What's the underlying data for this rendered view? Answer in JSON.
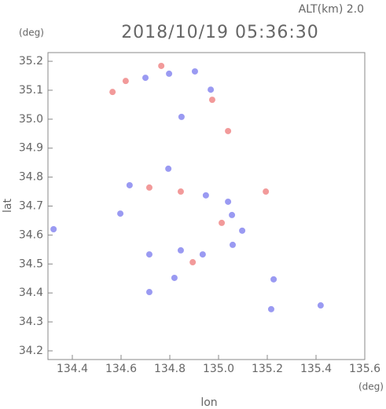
{
  "chart_data": {
    "type": "scatter",
    "title": "2018/10/19 05:36:30",
    "subtitle": "ALT(km) 2.0",
    "y_unit": "(deg)",
    "x_unit": "(deg)",
    "x_label": "lon",
    "y_label": "lat",
    "xlim": [
      134.3,
      135.6
    ],
    "ylim": [
      34.17,
      35.23
    ],
    "xticks": [
      134.4,
      134.6,
      134.8,
      {
        "value": 135,
        "label": "135.0"
      },
      135.2,
      135.4,
      135.6
    ],
    "yticks": [
      35.2,
      35.1,
      {
        "value": 35,
        "label": "35.0"
      },
      34.9,
      34.8,
      34.7,
      34.6,
      34.5,
      34.4,
      34.3,
      34.2
    ],
    "series": [
      {
        "color": "#8888f0",
        "x": [
          134.7,
          134.797,
          134.903,
          134.968,
          134.848,
          134.794,
          134.635,
          134.948,
          135.039,
          135.055,
          135.097,
          134.597,
          134.323,
          134.716,
          134.845,
          134.935,
          134.819,
          134.716,
          135.216,
          135.419,
          135.058,
          135.226
        ],
        "y": [
          35.143,
          35.157,
          35.165,
          35.102,
          35.008,
          34.829,
          34.772,
          34.737,
          34.715,
          34.669,
          34.615,
          34.674,
          34.62,
          34.533,
          34.547,
          34.533,
          34.452,
          34.403,
          34.344,
          34.357,
          34.566,
          34.447
        ]
      },
      {
        "color": "#f08888",
        "x": [
          134.565,
          134.619,
          134.765,
          134.974,
          135.039,
          134.716,
          134.845,
          135.013,
          135.194,
          134.894
        ],
        "y": [
          35.094,
          35.132,
          35.184,
          35.067,
          34.959,
          34.764,
          34.75,
          34.642,
          34.75,
          34.506
        ]
      }
    ]
  }
}
